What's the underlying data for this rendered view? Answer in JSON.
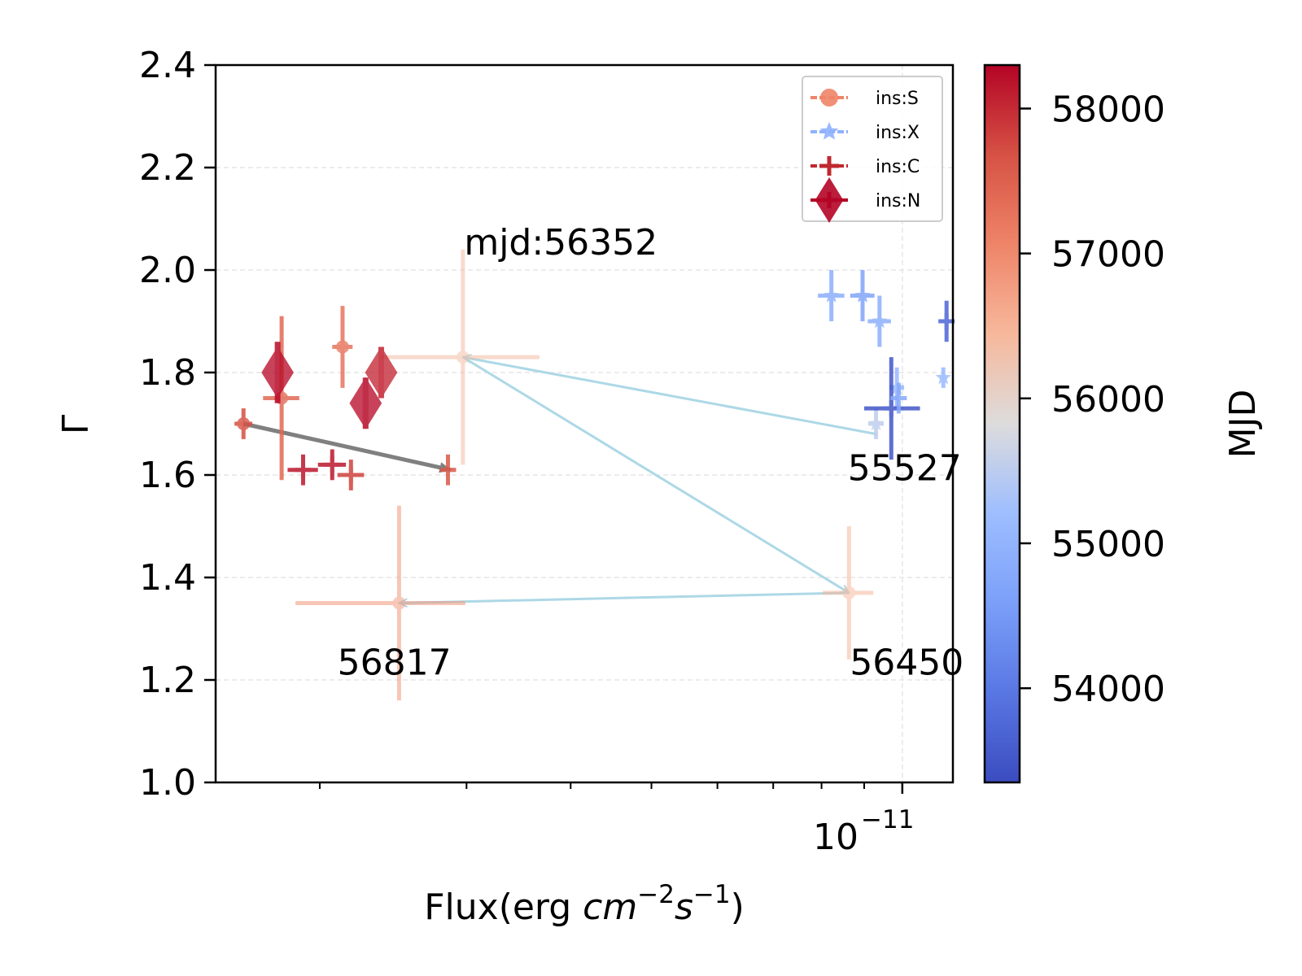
{
  "chart_data": {
    "type": "scatter",
    "xlabel": "Flux(erg cm⁻²s⁻¹)",
    "xlabel_parts": {
      "prefix": "Flux(erg ",
      "unit_a": "cm",
      "exp_a": "−2",
      "unit_b": "s",
      "exp_b": "−1",
      "suffix": ")"
    },
    "ylabel": "Γ",
    "x_scale": "log",
    "xlim": [
      1.5e-12,
      1.15e-11
    ],
    "ylim": [
      1.0,
      2.4
    ],
    "y_ticks": [
      "1.0",
      "1.2",
      "1.4",
      "1.6",
      "1.8",
      "2.0",
      "2.2",
      "2.4"
    ],
    "x_tick_label": {
      "base": "10",
      "exp": "−11",
      "value": 1e-11
    },
    "grid": true,
    "legend_position": "top-right",
    "legend": [
      {
        "label": "ins:S",
        "marker": "circle",
        "color": "#ee8468"
      },
      {
        "label": "ins:X",
        "marker": "star",
        "color": "#8fb1fe"
      },
      {
        "label": "ins:C",
        "marker": "plus",
        "color": "#c0282f"
      },
      {
        "label": "ins:N",
        "marker": "diamond",
        "color": "#b40426"
      }
    ],
    "colorbar": {
      "label": "MJD",
      "range": [
        53350,
        58300
      ],
      "ticks": [
        "54000",
        "55000",
        "56000",
        "57000",
        "58000"
      ],
      "cmap": "coolwarm"
    },
    "series": [
      {
        "name": "ins:S",
        "marker": "circle",
        "points": [
          {
            "x": 1.62e-12,
            "y": 1.7,
            "xerr": [
              4e-14,
              4e-14
            ],
            "yerr": 0.03,
            "mjd": 57700
          },
          {
            "x": 1.8e-12,
            "y": 1.75,
            "xerr": [
              9e-14,
              9e-14
            ],
            "yerr": 0.16,
            "mjd": 57400
          },
          {
            "x": 2.13e-12,
            "y": 1.85,
            "xerr": [
              6e-14,
              6e-14
            ],
            "yerr": 0.08,
            "mjd": 57250
          },
          {
            "x": 2.97e-12,
            "y": 1.83,
            "xerr": [
              6e-13,
              7e-13
            ],
            "yerr": 0.21,
            "mjd": 56352
          },
          {
            "x": 2.49e-12,
            "y": 1.35,
            "xerr": [
              6.2e-13,
              5e-13
            ],
            "yerr": 0.19,
            "mjd": 56817
          },
          {
            "x": 8.63e-12,
            "y": 1.37,
            "xerr": [
              6e-13,
              6e-13
            ],
            "yerr": 0.13,
            "mjd": 56450
          }
        ]
      },
      {
        "name": "ins:X",
        "marker": "star",
        "points": [
          {
            "x": 8.22e-12,
            "y": 1.95,
            "xerr": [
              3e-13,
              3e-13
            ],
            "yerr": 0.05,
            "mjd": 54900
          },
          {
            "x": 8.96e-12,
            "y": 1.95,
            "xerr": [
              3e-13,
              3e-13
            ],
            "yerr": 0.05,
            "mjd": 54700
          },
          {
            "x": 9.39e-12,
            "y": 1.9,
            "xerr": [
              3e-13,
              3e-13
            ],
            "yerr": 0.05,
            "mjd": 54900
          },
          {
            "x": 9.85e-12,
            "y": 1.77,
            "xerr": [
              2e-13,
              2e-13
            ],
            "yerr": 0.04,
            "mjd": 55100
          },
          {
            "x": 1.12e-11,
            "y": 1.79,
            "xerr": [
              1e-13,
              1e-13
            ],
            "yerr": 0.02,
            "mjd": 55100
          },
          {
            "x": 9.3e-12,
            "y": 1.7,
            "xerr": [
              2e-13,
              2e-13
            ],
            "yerr": 0.03,
            "mjd": 55527
          }
        ]
      },
      {
        "name": "ins:C",
        "marker": "plus",
        "points": [
          {
            "x": 1.91e-12,
            "y": 1.61,
            "xerr": [
              8e-14,
              8e-14
            ],
            "yerr": 0.03,
            "mjd": 58150
          },
          {
            "x": 2.07e-12,
            "y": 1.62,
            "xerr": [
              8e-14,
              8e-14
            ],
            "yerr": 0.03,
            "mjd": 58150
          },
          {
            "x": 2.18e-12,
            "y": 1.6,
            "xerr": [
              8e-14,
              8e-14
            ],
            "yerr": 0.03,
            "mjd": 57800
          },
          {
            "x": 2.85e-12,
            "y": 1.61,
            "xerr": [
              5e-14,
              5e-14
            ],
            "yerr": 0.03,
            "mjd": 57600
          },
          {
            "x": 9.7e-12,
            "y": 1.73,
            "xerr": [
              7e-13,
              8e-13
            ],
            "yerr": 0.1,
            "mjd": 53500
          },
          {
            "x": 1.13e-11,
            "y": 1.9,
            "xerr": [
              2e-13,
              2e-13
            ],
            "yerr": 0.04,
            "mjd": 53700
          },
          {
            "x": 9.9e-12,
            "y": 1.75,
            "xerr": [
              1e-13,
              1e-13
            ],
            "yerr": 0.03,
            "mjd": 54800
          }
        ]
      },
      {
        "name": "ins:N",
        "marker": "diamond",
        "points": [
          {
            "x": 1.78e-12,
            "y": 1.8,
            "yerr": 0.06,
            "mjd": 58250
          },
          {
            "x": 2.27e-12,
            "y": 1.74,
            "yerr": 0.05,
            "mjd": 58250
          },
          {
            "x": 2.37e-12,
            "y": 1.8,
            "yerr": 0.05,
            "mjd": 58050
          }
        ]
      }
    ],
    "annotations": [
      {
        "text": "mjd:56352",
        "x": 2.98e-12,
        "y": 2.03
      },
      {
        "text": "55527",
        "x": 8.6e-12,
        "y": 1.59
      },
      {
        "text": "56817",
        "x": 2.1e-12,
        "y": 1.21
      },
      {
        "text": "56450",
        "x": 8.65e-12,
        "y": 1.21
      }
    ],
    "arrows": [
      {
        "from": [
          9.3e-12,
          1.68
        ],
        "to": [
          2.97e-12,
          1.83
        ],
        "color": "#add8e6"
      },
      {
        "from": [
          2.97e-12,
          1.83
        ],
        "to": [
          8.63e-12,
          1.37
        ],
        "color": "#add8e6"
      },
      {
        "from": [
          8.63e-12,
          1.37
        ],
        "to": [
          2.49e-12,
          1.35
        ],
        "color": "#add8e6"
      },
      {
        "from": [
          1.62e-12,
          1.7
        ],
        "to": [
          2.87e-12,
          1.61
        ],
        "color": "#808080"
      }
    ]
  }
}
